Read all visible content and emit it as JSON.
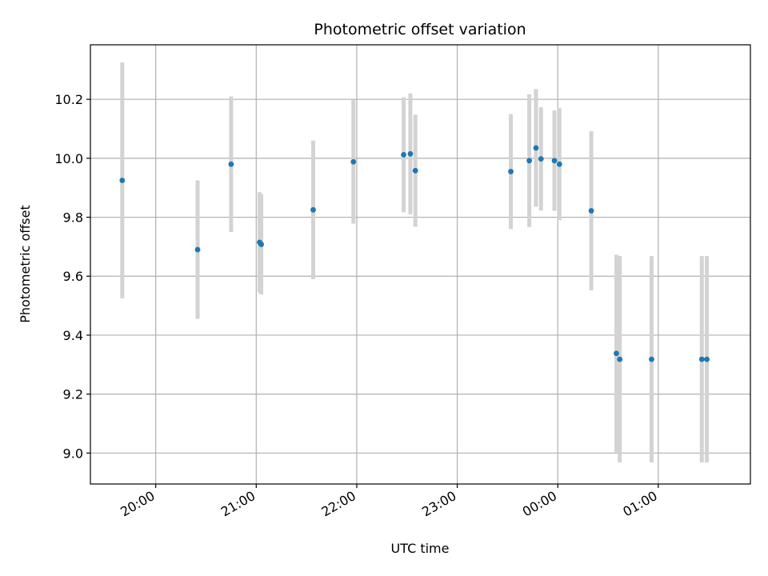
{
  "chart_data": {
    "type": "scatter",
    "title": "Photometric offset variation",
    "xlabel": "UTC time",
    "ylabel": "Photometric offset",
    "x_tick_labels": [
      "20:00",
      "21:00",
      "22:00",
      "23:00",
      "00:00",
      "01:00"
    ],
    "y_tick_labels": [
      "9.0",
      "9.2",
      "9.4",
      "9.6",
      "9.8",
      "10.0",
      "10.2"
    ],
    "xlim": [
      "19:21",
      "01:55"
    ],
    "ylim": [
      8.895,
      10.385
    ],
    "grid": true,
    "error_bars": true,
    "colors": {
      "point": "#1f77b4",
      "errorbar": "#d3d3d3",
      "grid": "#b0b0b0"
    },
    "series": [
      {
        "points": [
          {
            "x": "19:40",
            "y": 9.925,
            "err": 0.4
          },
          {
            "x": "20:25",
            "y": 9.69,
            "err": 0.235
          },
          {
            "x": "20:45",
            "y": 9.98,
            "err": 0.23
          },
          {
            "x": "21:02",
            "y": 9.715,
            "err": 0.17
          },
          {
            "x": "21:03",
            "y": 9.708,
            "err": 0.17
          },
          {
            "x": "21:34",
            "y": 9.825,
            "err": 0.235
          },
          {
            "x": "21:58",
            "y": 9.988,
            "err": 0.21
          },
          {
            "x": "22:28",
            "y": 10.012,
            "err": 0.195
          },
          {
            "x": "22:32",
            "y": 10.015,
            "err": 0.205
          },
          {
            "x": "22:35",
            "y": 9.958,
            "err": 0.19
          },
          {
            "x": "23:32",
            "y": 9.955,
            "err": 0.195
          },
          {
            "x": "23:43",
            "y": 9.992,
            "err": 0.225
          },
          {
            "x": "23:47",
            "y": 10.035,
            "err": 0.2
          },
          {
            "x": "23:50",
            "y": 9.998,
            "err": 0.175
          },
          {
            "x": "23:58",
            "y": 9.992,
            "err": 0.17
          },
          {
            "x": "00:01",
            "y": 9.98,
            "err": 0.19
          },
          {
            "x": "00:20",
            "y": 9.822,
            "err": 0.27
          },
          {
            "x": "00:35",
            "y": 9.338,
            "err": 0.335
          },
          {
            "x": "00:37",
            "y": 9.318,
            "err": 0.35
          },
          {
            "x": "00:56",
            "y": 9.318,
            "err": 0.35
          },
          {
            "x": "01:26",
            "y": 9.318,
            "err": 0.35
          },
          {
            "x": "01:29",
            "y": 9.318,
            "err": 0.35
          }
        ]
      }
    ]
  }
}
